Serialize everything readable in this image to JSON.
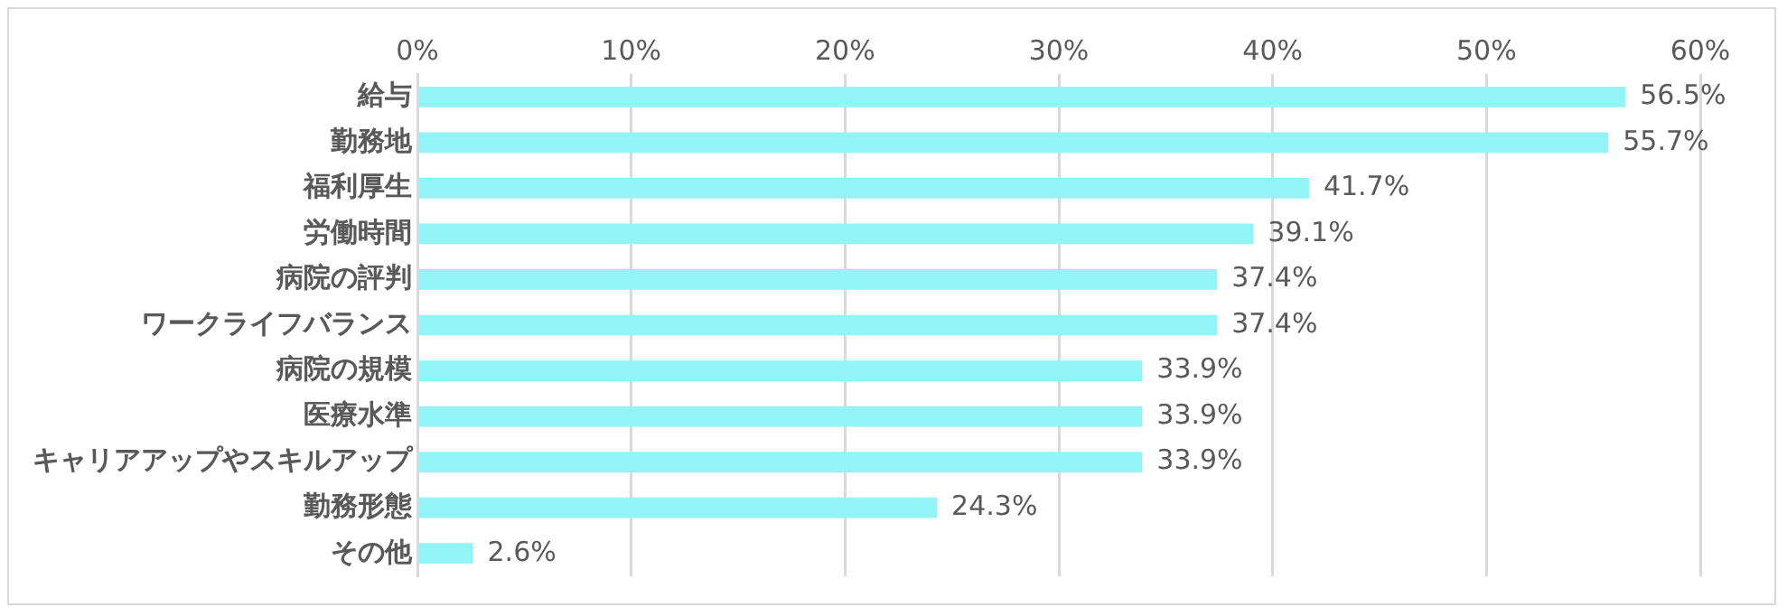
{
  "chart_data": {
    "type": "bar",
    "orientation": "horizontal",
    "categories": [
      "給与",
      "勤務地",
      "福利厚生",
      "労働時間",
      "病院の評判",
      "ワークライフバランス",
      "病院の規模",
      "医療水準",
      "キャリアアップやスキルアップ",
      "勤務形態",
      "その他"
    ],
    "values": [
      56.5,
      55.7,
      41.7,
      39.1,
      37.4,
      37.4,
      33.9,
      33.9,
      33.9,
      24.3,
      2.6
    ],
    "value_labels": [
      "56.5%",
      "55.7%",
      "41.7%",
      "39.1%",
      "37.4%",
      "37.4%",
      "33.9%",
      "33.9%",
      "33.9%",
      "24.3%",
      "2.6%"
    ],
    "color": "#92f4f6",
    "xlim": [
      0,
      60
    ],
    "xticks": [
      {
        "value": 0,
        "label": "0%"
      },
      {
        "value": 10,
        "label": "10%"
      },
      {
        "value": 20,
        "label": "20%"
      },
      {
        "value": 30,
        "label": "30%"
      },
      {
        "value": 40,
        "label": "40%"
      },
      {
        "value": 50,
        "label": "50%"
      },
      {
        "value": 60,
        "label": "60%"
      }
    ],
    "grid": "x",
    "legend": false
  }
}
